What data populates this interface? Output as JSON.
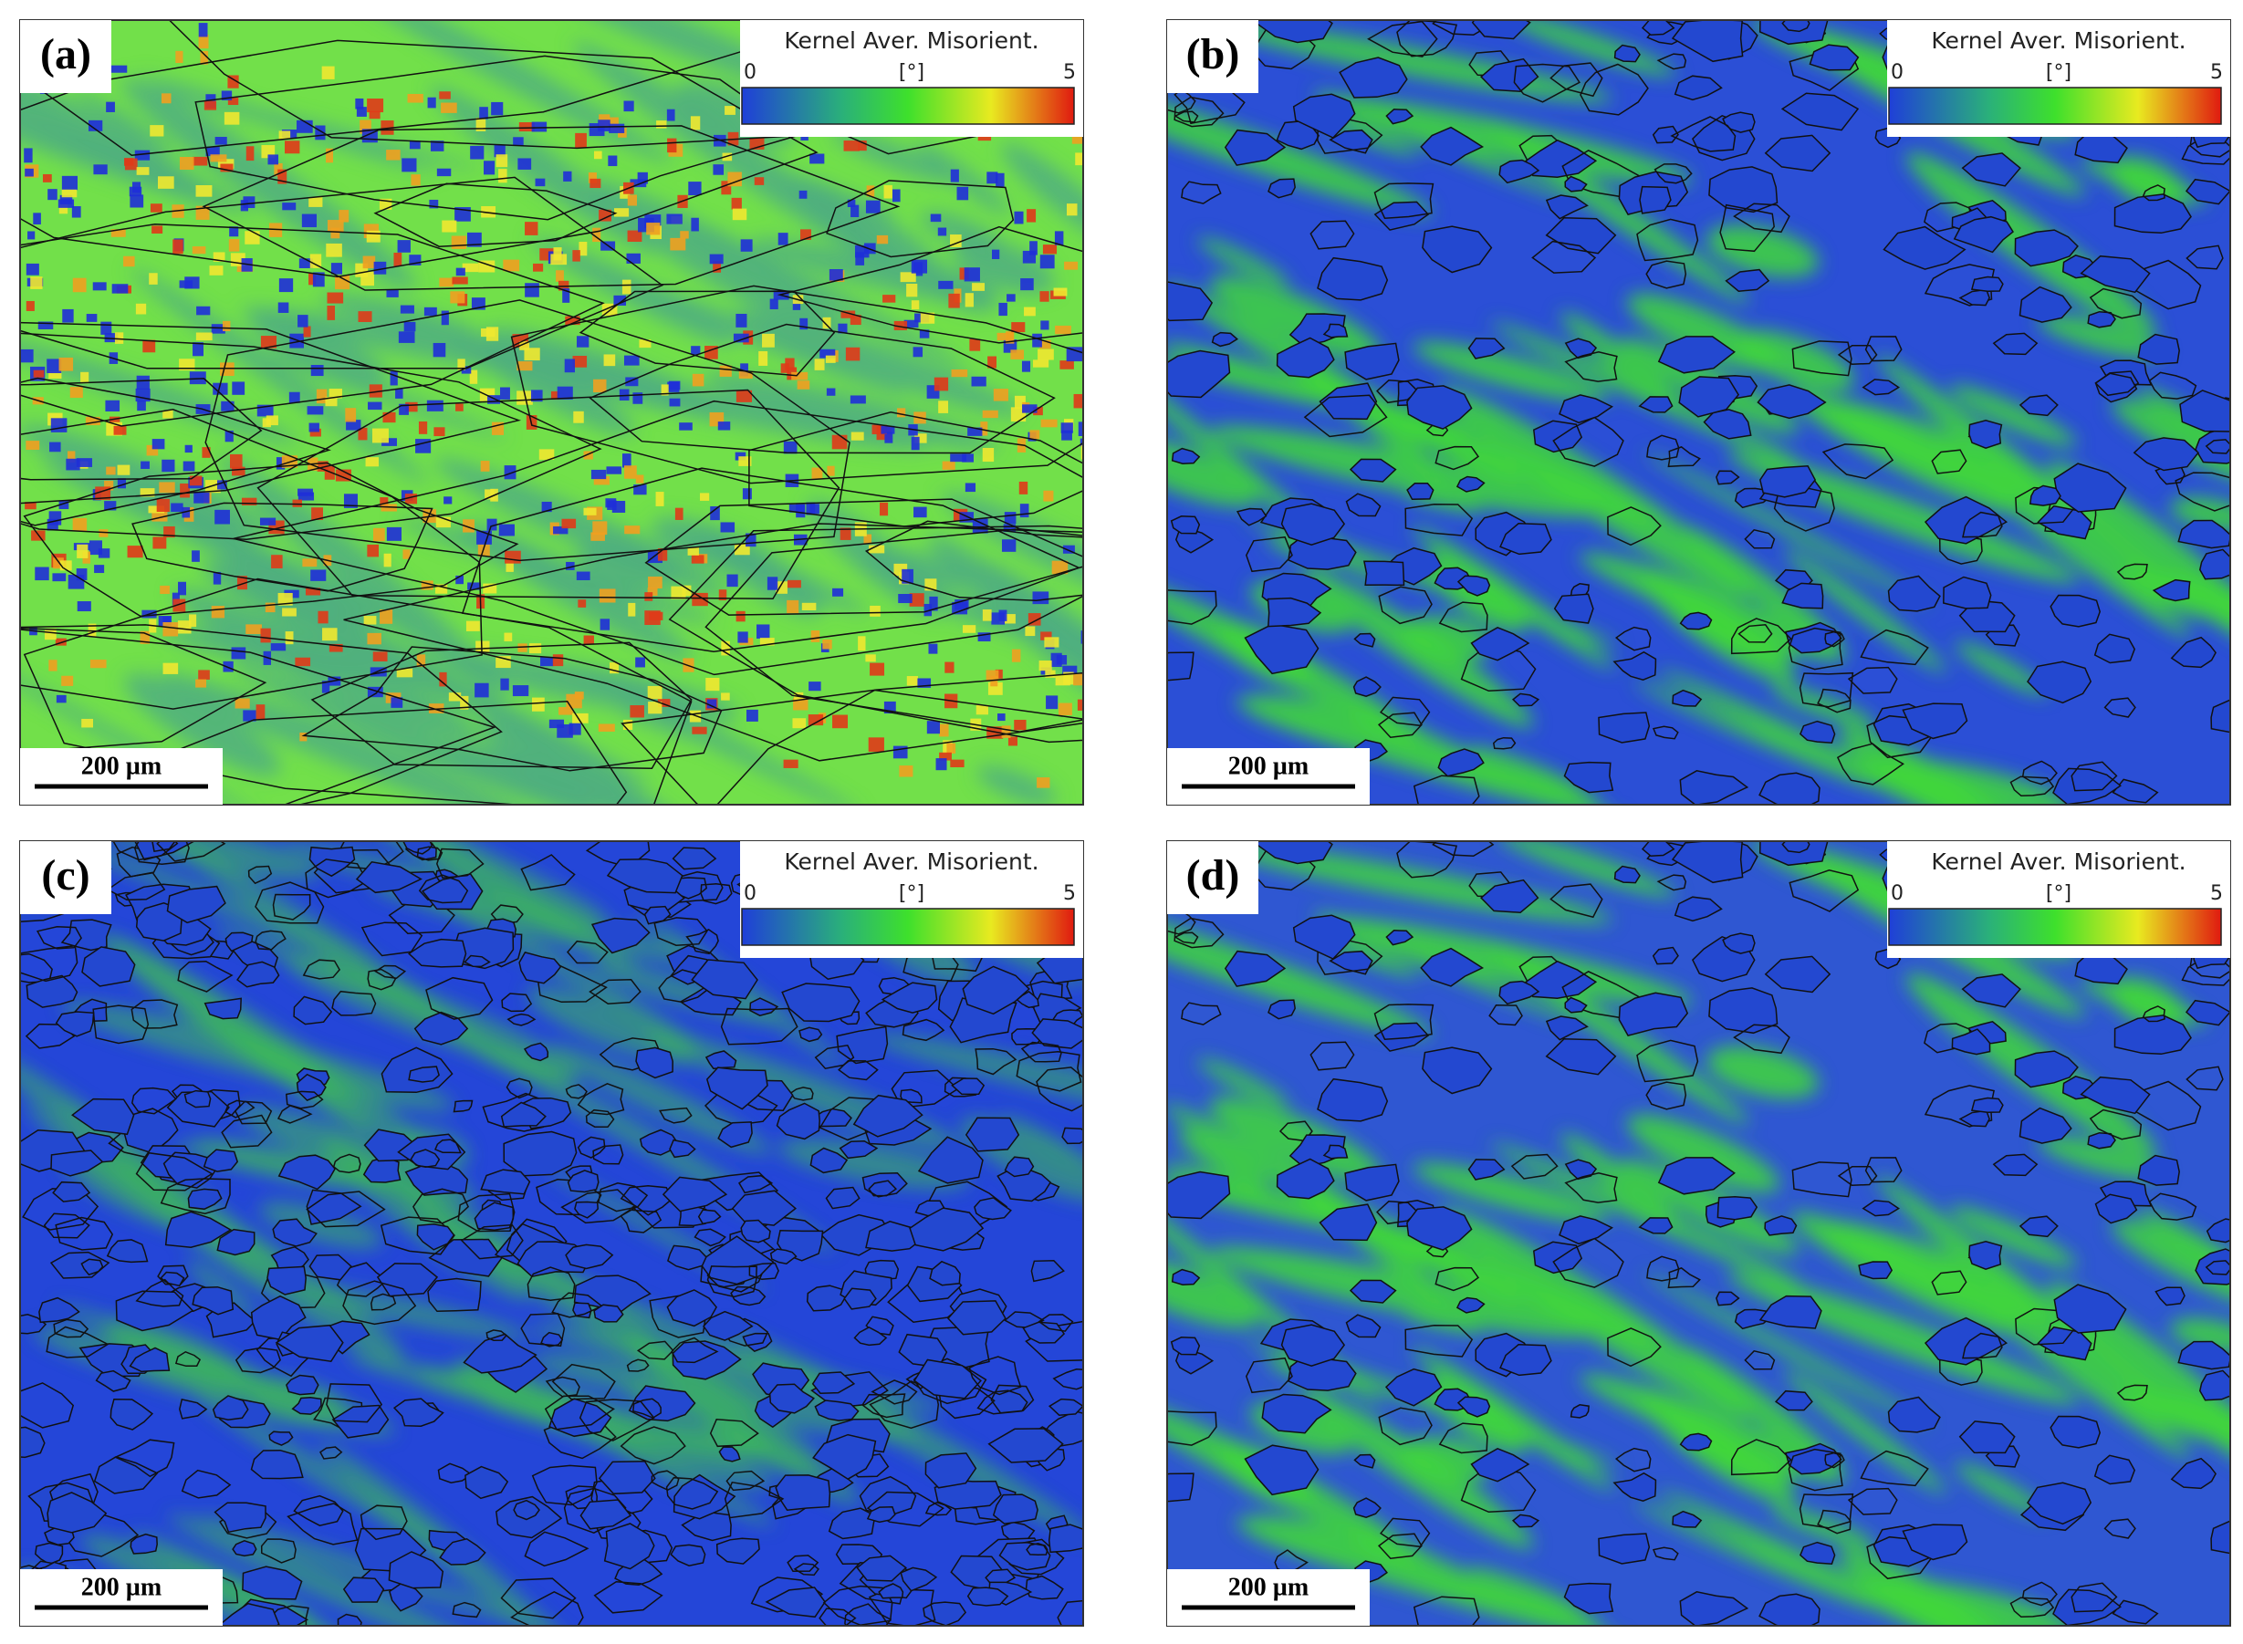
{
  "panels": [
    {
      "label": "(a)",
      "colorbar": {
        "title": "Kernel Aver. Misorient.",
        "min": "0",
        "unit": "[°]",
        "max": "5"
      },
      "scale_bar": "200 µm"
    },
    {
      "label": "(b)",
      "colorbar": {
        "title": "Kernel Aver. Misorient.",
        "min": "0",
        "unit": "[°]",
        "max": "5"
      },
      "scale_bar": "200 µm"
    },
    {
      "label": "(c)",
      "colorbar": {
        "title": "Kernel Aver. Misorient.",
        "min": "0",
        "unit": "[°]",
        "max": "5"
      },
      "scale_bar": "200 µm"
    },
    {
      "label": "(d)",
      "colorbar": {
        "title": "Kernel Aver. Misorient.",
        "min": "0",
        "unit": "[°]",
        "max": "5"
      },
      "scale_bar": "200 µm"
    }
  ]
}
